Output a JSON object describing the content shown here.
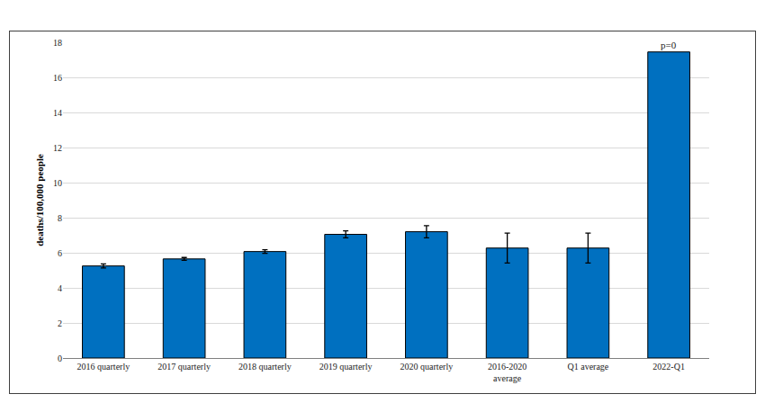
{
  "chart_data": {
    "type": "bar",
    "categories": [
      "2016 quarterly",
      "2017 quarterly",
      "2018 quarterly",
      "2019 quarterly",
      "2020 quarterly",
      "2016-2020\naverage",
      "Q1 average",
      "2022-Q1"
    ],
    "values": [
      5.25,
      5.65,
      6.07,
      7.05,
      7.2,
      6.27,
      6.27,
      17.45
    ],
    "error": [
      0.12,
      0.08,
      0.1,
      0.2,
      0.35,
      0.85,
      0.85,
      null
    ],
    "color": "#0070c0",
    "y_label": "deaths/100,000 people",
    "ylim": [
      0,
      18
    ],
    "yticks": [
      0,
      2,
      4,
      6,
      8,
      10,
      12,
      14,
      16,
      18
    ],
    "grid": true,
    "annotations": [
      {
        "text": "p=0",
        "category": "2022-Q1"
      }
    ]
  }
}
